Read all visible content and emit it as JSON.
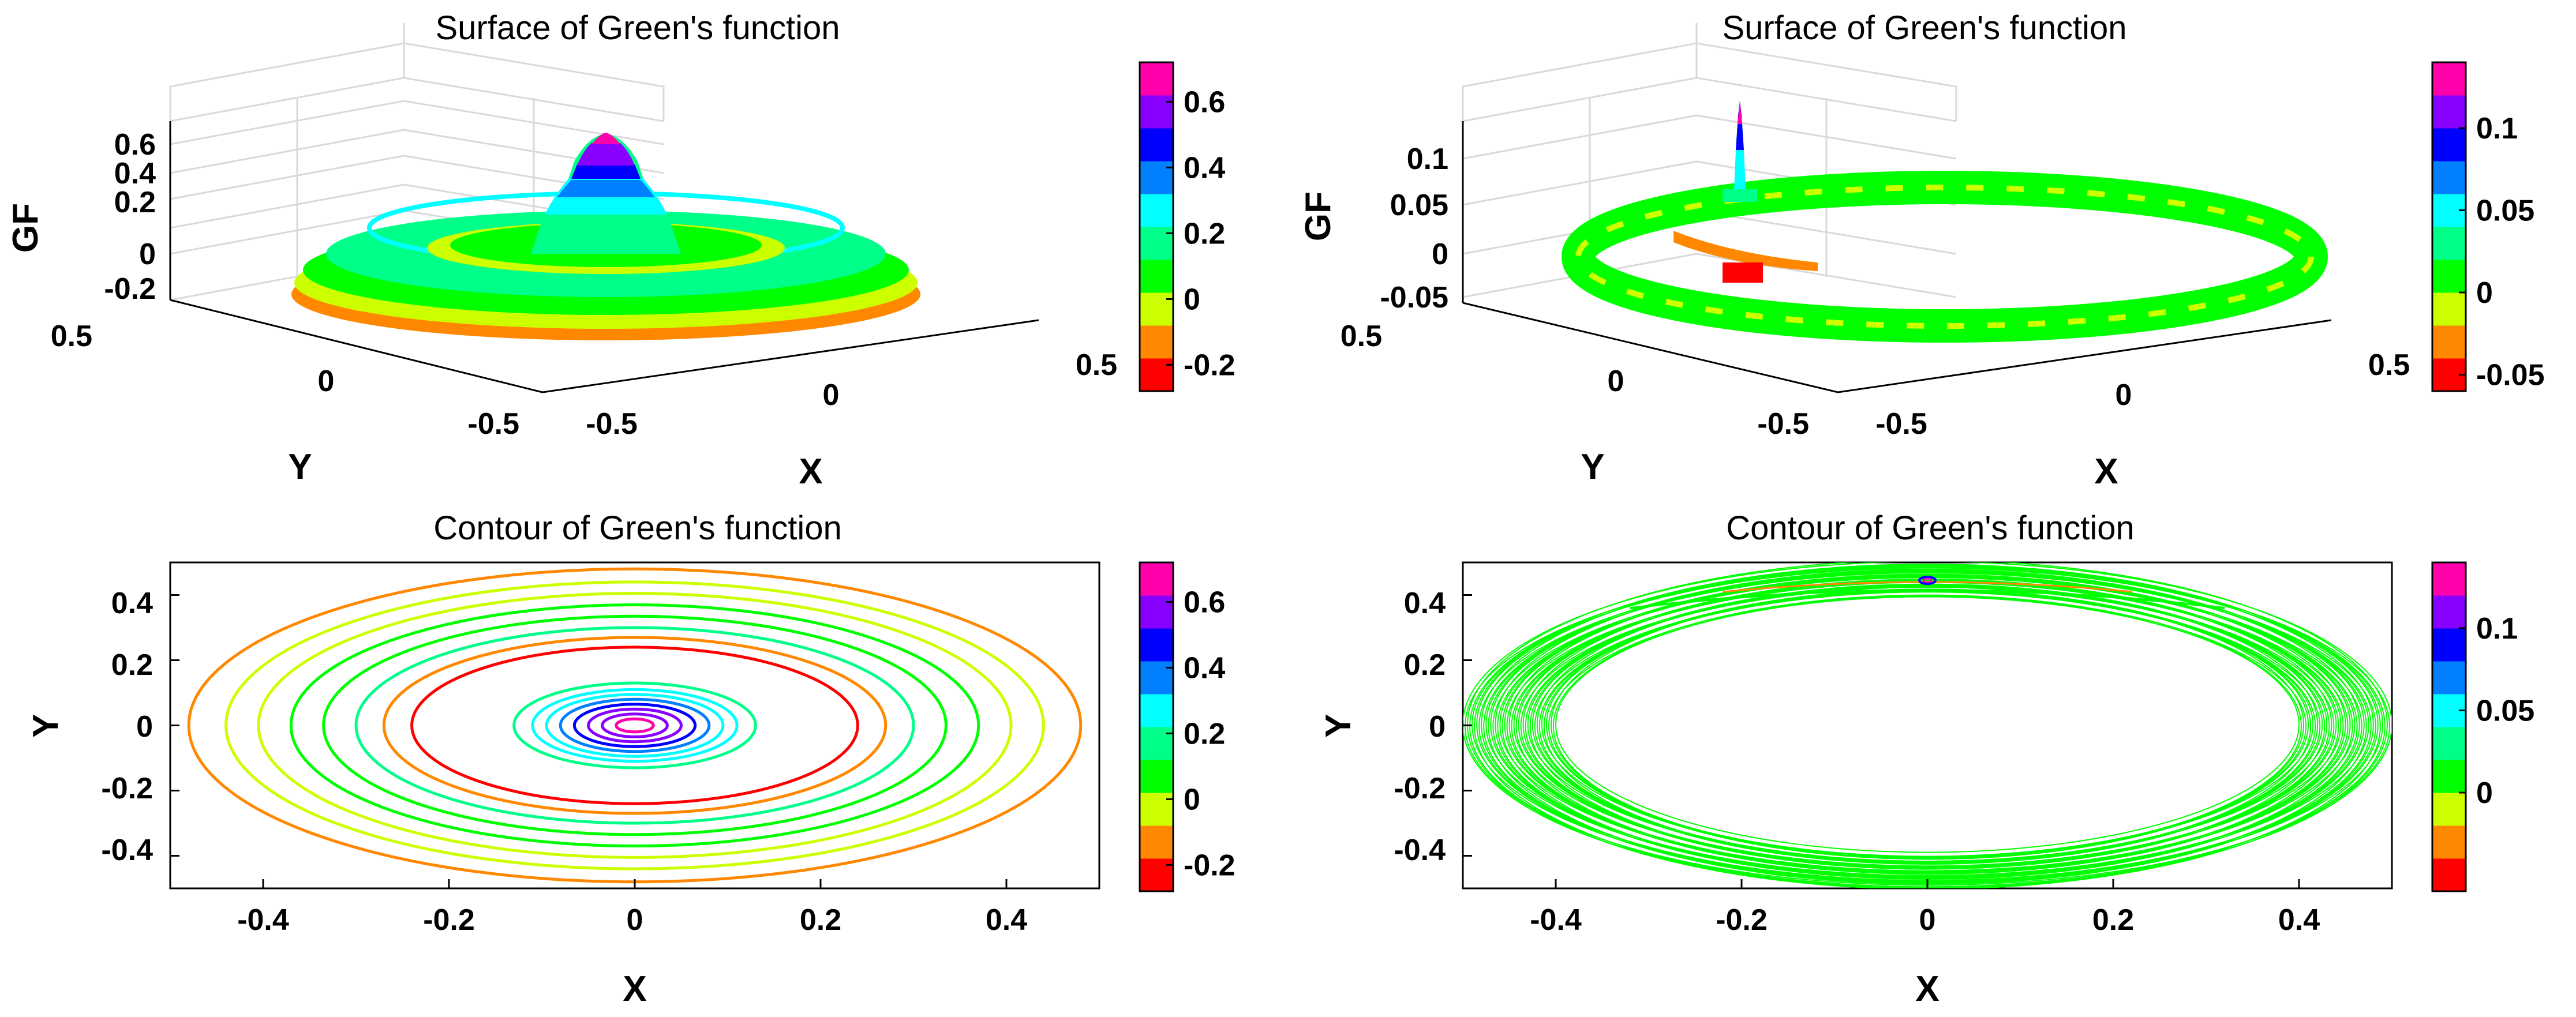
{
  "colormap": [
    "#ff0000",
    "#ff8800",
    "#ccff00",
    "#00ff00",
    "#00ff88",
    "#00ffff",
    "#0080ff",
    "#0000ff",
    "#8800ff",
    "#ff00aa"
  ],
  "chart_data": [
    {
      "type": "surface",
      "title": "Surface of Green's function",
      "xlabel": "X",
      "ylabel": "Y",
      "zlabel": "GF",
      "xticks": [
        "-0.5",
        "0",
        "0.5"
      ],
      "yticks": [
        "0.5",
        "0",
        "-0.5"
      ],
      "zticks": [
        "0.6",
        "0.4",
        "0.2",
        "0",
        "-0.2"
      ],
      "zlim": [
        -0.28,
        0.72
      ],
      "description_values": {
        "peak": 0.7,
        "min": -0.28
      },
      "colorbar": {
        "range": [
          -0.28,
          0.72
        ],
        "ticks": [
          "0.6",
          "0.4",
          "0.2",
          "0",
          "-0.2"
        ],
        "tick_values": [
          0.6,
          0.4,
          0.2,
          0,
          -0.2
        ]
      }
    },
    {
      "type": "surface",
      "title": "Surface of Green's function",
      "xlabel": "X",
      "ylabel": "Y",
      "zlabel": "GF",
      "xticks": [
        "-0.5",
        "0",
        "0.5"
      ],
      "yticks": [
        "0.5",
        "0",
        "-0.5"
      ],
      "zticks": [
        "0.1",
        "0.05",
        "0",
        "-0.05"
      ],
      "zlim": [
        -0.06,
        0.14
      ],
      "colorbar": {
        "range": [
          -0.06,
          0.14
        ],
        "ticks": [
          "0.1",
          "0.05",
          "0",
          "-0.05"
        ],
        "tick_values": [
          0.1,
          0.05,
          0,
          -0.05
        ]
      }
    },
    {
      "type": "contour",
      "title": "Contour of Green's function",
      "xlabel": "X",
      "ylabel": "Y",
      "xlim": [
        -0.5,
        0.5
      ],
      "ylim": [
        -0.5,
        0.5
      ],
      "xticks": [
        "-0.4",
        "-0.2",
        "0",
        "0.2",
        "0.4"
      ],
      "yticks": [
        "0.4",
        "0.2",
        "0",
        "-0.2",
        "-0.4"
      ],
      "levels": [
        {
          "radius": 0.02,
          "value": 0.65
        },
        {
          "radius": 0.035,
          "value": 0.6
        },
        {
          "radius": 0.05,
          "value": 0.52
        },
        {
          "radius": 0.065,
          "value": 0.45
        },
        {
          "radius": 0.08,
          "value": 0.37
        },
        {
          "radius": 0.095,
          "value": 0.3
        },
        {
          "radius": 0.11,
          "value": 0.22
        },
        {
          "radius": 0.13,
          "value": 0.15
        },
        {
          "radius": 0.24,
          "value": -0.25
        },
        {
          "radius": 0.27,
          "value": -0.18
        },
        {
          "radius": 0.3,
          "value": 0.15
        },
        {
          "radius": 0.335,
          "value": 0.1
        },
        {
          "radius": 0.37,
          "value": 0.05
        },
        {
          "radius": 0.405,
          "value": 0.0
        },
        {
          "radius": 0.44,
          "value": -0.05
        },
        {
          "radius": 0.48,
          "value": -0.15
        }
      ],
      "colorbar": {
        "range": [
          -0.28,
          0.72
        ],
        "ticks": [
          "0.6",
          "0.4",
          "0.2",
          "0",
          "-0.2"
        ],
        "tick_values": [
          0.6,
          0.4,
          0.2,
          0,
          -0.2
        ]
      }
    },
    {
      "type": "contour",
      "title": "Contour of Green's function",
      "xlabel": "X",
      "ylabel": "Y",
      "xlim": [
        -0.5,
        0.5
      ],
      "ylim": [
        -0.5,
        0.5
      ],
      "xticks": [
        "-0.4",
        "-0.2",
        "0",
        "0.2",
        "0.4"
      ],
      "yticks": [
        "0.4",
        "0.2",
        "0",
        "-0.2",
        "-0.4"
      ],
      "ring": {
        "inner_radius": 0.4,
        "outer_radius": 0.5,
        "value": 0.0
      },
      "colorbar": {
        "range": [
          -0.06,
          0.14
        ],
        "ticks": [
          "0.1",
          "0.05",
          "0"
        ],
        "tick_values": [
          0.1,
          0.05,
          0
        ]
      }
    }
  ]
}
